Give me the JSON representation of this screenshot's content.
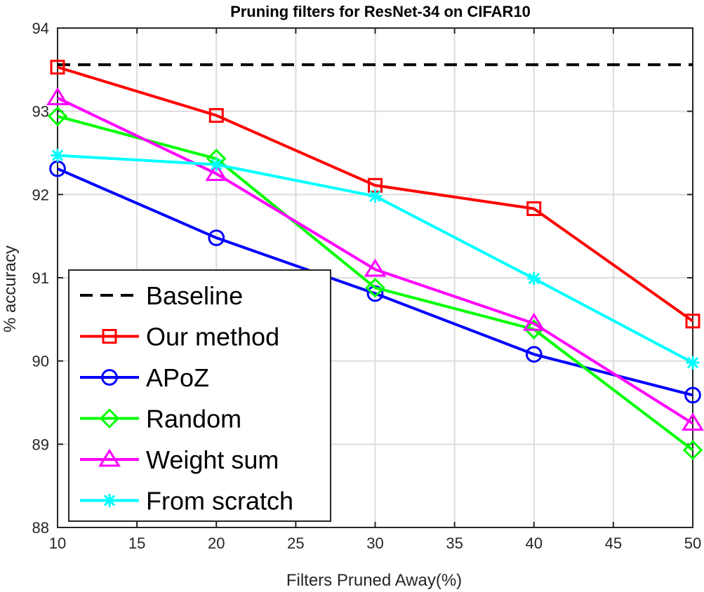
{
  "chart_data": {
    "type": "line",
    "title": "Pruning filters for ResNet-34 on CIFAR10",
    "xlabel": "Filters Pruned Away(%)",
    "ylabel": "% accuracy",
    "xlim": [
      10,
      50
    ],
    "ylim": [
      88,
      94
    ],
    "xticks": [
      10,
      15,
      20,
      25,
      30,
      35,
      40,
      45,
      50
    ],
    "yticks": [
      88,
      89,
      90,
      91,
      92,
      93,
      94
    ],
    "grid": true,
    "legend_position": "bottom-left",
    "x": [
      10,
      20,
      30,
      40,
      50
    ],
    "baseline": {
      "name": "Baseline",
      "value": 93.56,
      "color": "#000000",
      "style": "dashed"
    },
    "series": [
      {
        "name": "Our method",
        "color": "#ff0000",
        "marker": "square",
        "values": [
          93.53,
          92.95,
          92.11,
          91.83,
          90.48
        ]
      },
      {
        "name": "APoZ",
        "color": "#0000ff",
        "marker": "circle",
        "values": [
          92.31,
          91.48,
          90.81,
          90.08,
          89.59
        ]
      },
      {
        "name": "Random",
        "color": "#00ff00",
        "marker": "diamond",
        "values": [
          92.94,
          92.43,
          90.88,
          90.38,
          88.93
        ]
      },
      {
        "name": "Weight sum",
        "color": "#ff00ff",
        "marker": "triangle",
        "values": [
          93.16,
          92.25,
          91.1,
          90.45,
          89.25
        ]
      },
      {
        "name": "From scratch",
        "color": "#00ffff",
        "marker": "asterisk",
        "values": [
          92.47,
          92.36,
          91.98,
          90.99,
          89.98
        ]
      }
    ]
  }
}
